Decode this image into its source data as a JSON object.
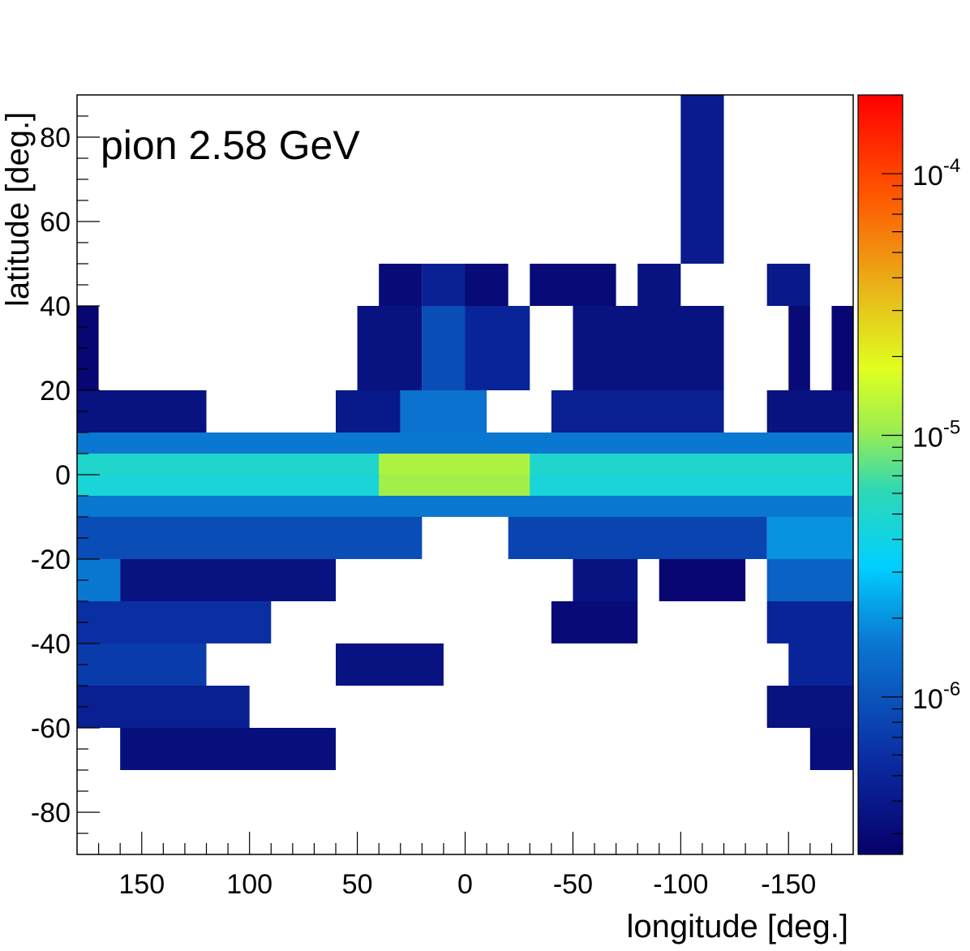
{
  "chart_data": {
    "type": "heatmap",
    "title": "pion 2.58 GeV",
    "xlabel": "longitude [deg.]",
    "ylabel": "latitude [deg.]",
    "xlim": [
      180,
      -180
    ],
    "ylim": [
      -90,
      90
    ],
    "x_ticks": [
      150,
      100,
      50,
      0,
      -50,
      -100,
      -150
    ],
    "y_ticks": [
      80,
      60,
      40,
      20,
      0,
      -20,
      -40,
      -60,
      -80
    ],
    "colorbar": {
      "scale": "log",
      "range": [
        2.5e-07,
        0.0002
      ],
      "tick_labels": [
        {
          "base": "10",
          "exp": "-6",
          "value": 1e-06
        },
        {
          "base": "10",
          "exp": "-5",
          "value": 1e-05
        },
        {
          "base": "10",
          "exp": "-4",
          "value": 0.0001
        }
      ]
    },
    "bins": [
      {
        "lon": [
          -120,
          -100
        ],
        "lat": [
          70,
          90
        ],
        "value": 4.2e-07
      },
      {
        "lon": [
          -120,
          -100
        ],
        "lat": [
          50,
          70
        ],
        "value": 4.2e-07
      },
      {
        "lon": [
          40,
          20
        ],
        "lat": [
          40,
          50
        ],
        "value": 3e-07
      },
      {
        "lon": [
          20,
          0
        ],
        "lat": [
          40,
          50
        ],
        "value": 4.5e-07
      },
      {
        "lon": [
          0,
          -20
        ],
        "lat": [
          40,
          50
        ],
        "value": 3e-07
      },
      {
        "lon": [
          -30,
          -70
        ],
        "lat": [
          40,
          50
        ],
        "value": 3e-07
      },
      {
        "lon": [
          -80,
          -100
        ],
        "lat": [
          40,
          50
        ],
        "value": 3.5e-07
      },
      {
        "lon": [
          -140,
          -160
        ],
        "lat": [
          40,
          50
        ],
        "value": 4e-07
      },
      {
        "lon": [
          180,
          170
        ],
        "lat": [
          20,
          40
        ],
        "value": 2.8e-07
      },
      {
        "lon": [
          50,
          20
        ],
        "lat": [
          20,
          40
        ],
        "value": 3.5e-07
      },
      {
        "lon": [
          20,
          0
        ],
        "lat": [
          20,
          40
        ],
        "value": 9e-07
      },
      {
        "lon": [
          0,
          -30
        ],
        "lat": [
          20,
          40
        ],
        "value": 5e-07
      },
      {
        "lon": [
          -50,
          -120
        ],
        "lat": [
          20,
          40
        ],
        "value": 3.5e-07
      },
      {
        "lon": [
          -150,
          -160
        ],
        "lat": [
          20,
          40
        ],
        "value": 3e-07
      },
      {
        "lon": [
          -170,
          -180
        ],
        "lat": [
          20,
          40
        ],
        "value": 2.8e-07
      },
      {
        "lon": [
          180,
          120
        ],
        "lat": [
          10,
          20
        ],
        "value": 3.5e-07
      },
      {
        "lon": [
          180,
          120
        ],
        "lat": [
          5,
          10
        ],
        "value": 6e-07
      },
      {
        "lon": [
          60,
          30
        ],
        "lat": [
          10,
          20
        ],
        "value": 4e-07
      },
      {
        "lon": [
          30,
          -10
        ],
        "lat": [
          10,
          20
        ],
        "value": 1.5e-06
      },
      {
        "lon": [
          -40,
          -120
        ],
        "lat": [
          10,
          20
        ],
        "value": 4.5e-07
      },
      {
        "lon": [
          -140,
          -180
        ],
        "lat": [
          10,
          20
        ],
        "value": 3.5e-07
      },
      {
        "lon": [
          180,
          -180
        ],
        "lat": [
          5,
          10
        ],
        "value": 1.6e-06
      },
      {
        "lon": [
          180,
          -180
        ],
        "lat": [
          0,
          5
        ],
        "value": 5e-06
      },
      {
        "lon": [
          40,
          -30
        ],
        "lat": [
          0,
          5
        ],
        "value": 1.2e-05
      },
      {
        "lon": [
          180,
          -180
        ],
        "lat": [
          -5,
          0
        ],
        "value": 4.5e-06
      },
      {
        "lon": [
          40,
          -30
        ],
        "lat": [
          -5,
          0
        ],
        "value": 1.1e-05
      },
      {
        "lon": [
          180,
          -180
        ],
        "lat": [
          -10,
          -5
        ],
        "value": 1.6e-06
      },
      {
        "lon": [
          180,
          20
        ],
        "lat": [
          -20,
          -10
        ],
        "value": 9e-07
      },
      {
        "lon": [
          -20,
          -140
        ],
        "lat": [
          -20,
          -10
        ],
        "value": 8e-07
      },
      {
        "lon": [
          -140,
          -180
        ],
        "lat": [
          -20,
          -10
        ],
        "value": 2e-06
      },
      {
        "lon": [
          180,
          160
        ],
        "lat": [
          -20,
          -30
        ],
        "value": 1.6e-06
      },
      {
        "lon": [
          160,
          60
        ],
        "lat": [
          -20,
          -30
        ],
        "value": 3.5e-07
      },
      {
        "lon": [
          -50,
          -80
        ],
        "lat": [
          -20,
          -30
        ],
        "value": 3.5e-07
      },
      {
        "lon": [
          -90,
          -130
        ],
        "lat": [
          -20,
          -30
        ],
        "value": 2.8e-07
      },
      {
        "lon": [
          -140,
          -180
        ],
        "lat": [
          -20,
          -30
        ],
        "value": 1.2e-06
      },
      {
        "lon": [
          180,
          90
        ],
        "lat": [
          -30,
          -40
        ],
        "value": 6e-07
      },
      {
        "lon": [
          -40,
          -80
        ],
        "lat": [
          -30,
          -40
        ],
        "value": 3e-07
      },
      {
        "lon": [
          -140,
          -180
        ],
        "lat": [
          -30,
          -40
        ],
        "value": 5e-07
      },
      {
        "lon": [
          180,
          120
        ],
        "lat": [
          -40,
          -50
        ],
        "value": 7e-07
      },
      {
        "lon": [
          60,
          10
        ],
        "lat": [
          -40,
          -50
        ],
        "value": 3.5e-07
      },
      {
        "lon": [
          -150,
          -180
        ],
        "lat": [
          -40,
          -50
        ],
        "value": 5e-07
      },
      {
        "lon": [
          180,
          100
        ],
        "lat": [
          -50,
          -60
        ],
        "value": 4.5e-07
      },
      {
        "lon": [
          -140,
          -180
        ],
        "lat": [
          -50,
          -60
        ],
        "value": 3.5e-07
      },
      {
        "lon": [
          160,
          60
        ],
        "lat": [
          -60,
          -70
        ],
        "value": 3.3e-07
      },
      {
        "lon": [
          -160,
          -180
        ],
        "lat": [
          -60,
          -70
        ],
        "value": 3.3e-07
      }
    ]
  }
}
